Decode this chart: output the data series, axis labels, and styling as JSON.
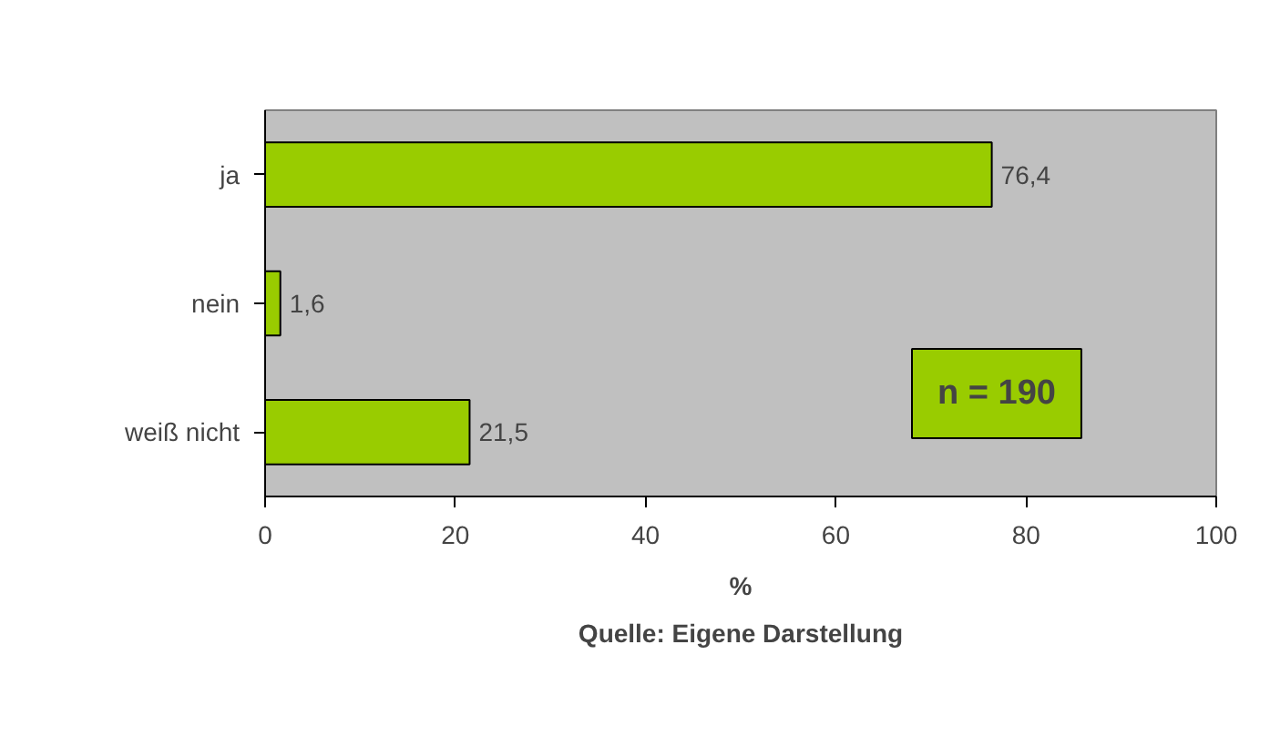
{
  "chart_data": {
    "type": "bar",
    "orientation": "horizontal",
    "categories": [
      "ja",
      "nein",
      "weiß nicht"
    ],
    "values": [
      76.4,
      1.6,
      21.5
    ],
    "value_labels": [
      "76,4",
      "1,6",
      "21,5"
    ],
    "color": "#99cc00",
    "xlim": [
      0,
      100
    ],
    "xticks": [
      0,
      20,
      40,
      60,
      80,
      100
    ],
    "xlabel": "%",
    "annotations": [
      "n = 190",
      "Quelle: Eigene Darstellung"
    ],
    "grid": false
  }
}
